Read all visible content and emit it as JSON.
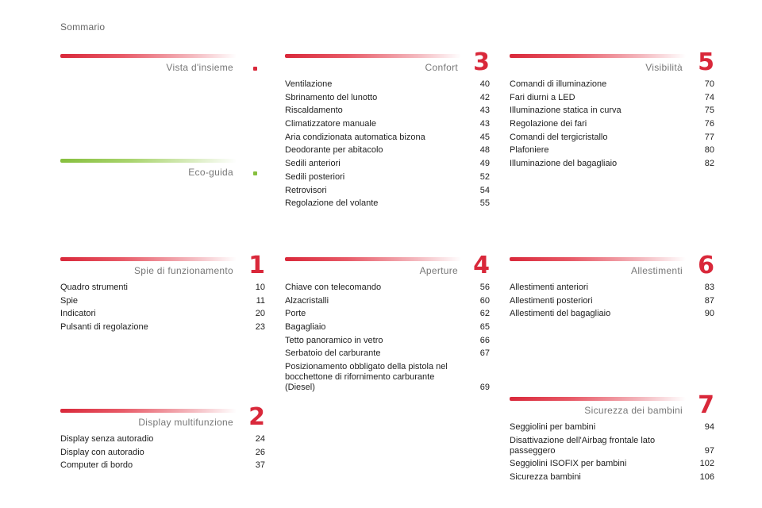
{
  "page_label": "Sommario",
  "sections": {
    "vista": {
      "title": "Vista d'insieme",
      "marker": "dot-red",
      "items": []
    },
    "eco": {
      "title": "Eco-guida",
      "marker": "dot-green",
      "items": []
    },
    "spie": {
      "title": "Spie di funzionamento",
      "number": "1",
      "items": [
        {
          "label": "Quadro strumenti",
          "page": "10"
        },
        {
          "label": "Spie",
          "page": "11"
        },
        {
          "label": "Indicatori",
          "page": "20"
        },
        {
          "label": "Pulsanti di regolazione",
          "page": "23"
        }
      ]
    },
    "display": {
      "title": "Display multifunzione",
      "number": "2",
      "items": [
        {
          "label": "Display senza autoradio",
          "page": "24"
        },
        {
          "label": "Display con autoradio",
          "page": "26"
        },
        {
          "label": "Computer di bordo",
          "page": "37"
        }
      ]
    },
    "confort": {
      "title": "Confort",
      "number": "3",
      "items": [
        {
          "label": "Ventilazione",
          "page": "40"
        },
        {
          "label": "Sbrinamento del lunotto",
          "page": "42"
        },
        {
          "label": "Riscaldamento",
          "page": "43"
        },
        {
          "label": "Climatizzatore manuale",
          "page": "43"
        },
        {
          "label": "Aria condizionata automatica bizona",
          "page": "45"
        },
        {
          "label": "Deodorante per abitacolo",
          "page": "48"
        },
        {
          "label": "Sedili anteriori",
          "page": "49"
        },
        {
          "label": "Sedili posteriori",
          "page": "52"
        },
        {
          "label": "Retrovisori",
          "page": "54"
        },
        {
          "label": "Regolazione del volante",
          "page": "55"
        }
      ]
    },
    "aperture": {
      "title": "Aperture",
      "number": "4",
      "items": [
        {
          "label": "Chiave con telecomando",
          "page": "56"
        },
        {
          "label": "Alzacristalli",
          "page": "60"
        },
        {
          "label": "Porte",
          "page": "62"
        },
        {
          "label": "Bagagliaio",
          "page": "65"
        },
        {
          "label": "Tetto panoramico in vetro",
          "page": "66"
        },
        {
          "label": "Serbatoio del carburante",
          "page": "67"
        },
        {
          "label": "Posizionamento obbligato della pistola nel\n   bocchettone di rifornimento carburante\n   (Diesel)",
          "page": "69",
          "multi": true
        }
      ]
    },
    "visib": {
      "title": "Visibilità",
      "number": "5",
      "items": [
        {
          "label": "Comandi di illuminazione",
          "page": "70"
        },
        {
          "label": "Fari diurni a LED",
          "page": "74"
        },
        {
          "label": "Illuminazione statica in curva",
          "page": "75"
        },
        {
          "label": "Regolazione dei fari",
          "page": "76"
        },
        {
          "label": "Comandi del tergicristallo",
          "page": "77"
        },
        {
          "label": "Plafoniere",
          "page": "80"
        },
        {
          "label": "Illuminazione del bagagliaio",
          "page": "82"
        }
      ]
    },
    "allest": {
      "title": "Allestimenti",
      "number": "6",
      "items": [
        {
          "label": "Allestimenti anteriori",
          "page": "83"
        },
        {
          "label": "Allestimenti posteriori",
          "page": "87"
        },
        {
          "label": "Allestimenti del bagagliaio",
          "page": "90"
        }
      ]
    },
    "sicur": {
      "title": "Sicurezza dei bambini",
      "number": "7",
      "items": [
        {
          "label": "Seggiolini per bambini",
          "page": "94"
        },
        {
          "label": "Disattivazione dell'Airbag frontale lato\n   passeggero",
          "page": "97",
          "multi": true
        },
        {
          "label": "Seggiolini ISOFIX per bambini",
          "page": "102"
        },
        {
          "label": "Sicurezza bambini",
          "page": "106"
        }
      ]
    }
  },
  "colors": {
    "accent_red": "#d9283a",
    "accent_green": "#86bf3e"
  }
}
